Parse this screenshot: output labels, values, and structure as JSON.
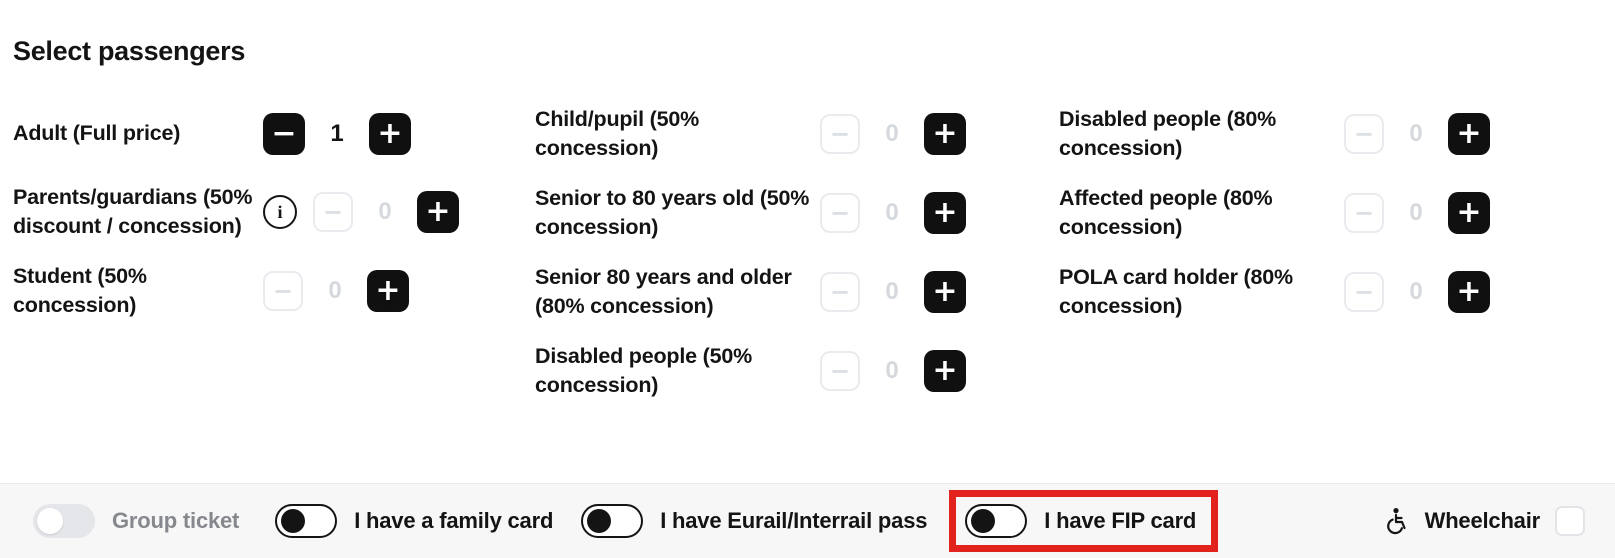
{
  "title": "Select passengers",
  "icons": {
    "minus": "−",
    "plus": "+",
    "info": "i"
  },
  "colors": {
    "primary_black": "#101010",
    "disabled_border": "#e9ebee",
    "disabled_text": "#d5d8dc",
    "footer_background": "#f7f7f8",
    "muted_label": "#85888d",
    "highlight_red": "#e2231d"
  },
  "passenger_columns": [
    {
      "rows": [
        {
          "label": "Adult (Full price)",
          "count": "1",
          "minus_enabled": true,
          "has_info": false
        },
        {
          "label": "Parents/guardians (50% discount / concession)",
          "count": "0",
          "minus_enabled": false,
          "has_info": true
        },
        {
          "label": "Student (50% concession)",
          "count": "0",
          "minus_enabled": false,
          "has_info": false
        }
      ]
    },
    {
      "rows": [
        {
          "label": "Child/pupil (50% concession)",
          "count": "0",
          "minus_enabled": false,
          "has_info": false
        },
        {
          "label": "Senior to 80 years old (50% concession)",
          "count": "0",
          "minus_enabled": false,
          "has_info": false
        },
        {
          "label": "Senior 80 years and older (80% concession)",
          "count": "0",
          "minus_enabled": false,
          "has_info": false
        },
        {
          "label": "Disabled people (50% concession)",
          "count": "0",
          "minus_enabled": false,
          "has_info": false
        }
      ]
    },
    {
      "rows": [
        {
          "label": "Disabled people (80% concession)",
          "count": "0",
          "minus_enabled": false,
          "has_info": false
        },
        {
          "label": "Affected people (80% concession)",
          "count": "0",
          "minus_enabled": false,
          "has_info": false
        },
        {
          "label": "POLA card holder (80% concession)",
          "count": "0",
          "minus_enabled": false,
          "has_info": false
        }
      ]
    }
  ],
  "footer": {
    "toggles": [
      {
        "id": "group-ticket",
        "label": "Group ticket",
        "state": "off",
        "disabled": true,
        "highlighted": false
      },
      {
        "id": "family-card",
        "label": "I have a family card",
        "state": "off",
        "disabled": false,
        "highlighted": false
      },
      {
        "id": "eurail-interrail-pass",
        "label": "I have Eurail/Interrail pass",
        "state": "off",
        "disabled": false,
        "highlighted": false
      },
      {
        "id": "fip-card",
        "label": "I have FIP card",
        "state": "off",
        "disabled": false,
        "highlighted": true
      }
    ],
    "wheelchair": {
      "label": "Wheelchair",
      "checked": false,
      "icon": "wheelchair-icon"
    }
  }
}
